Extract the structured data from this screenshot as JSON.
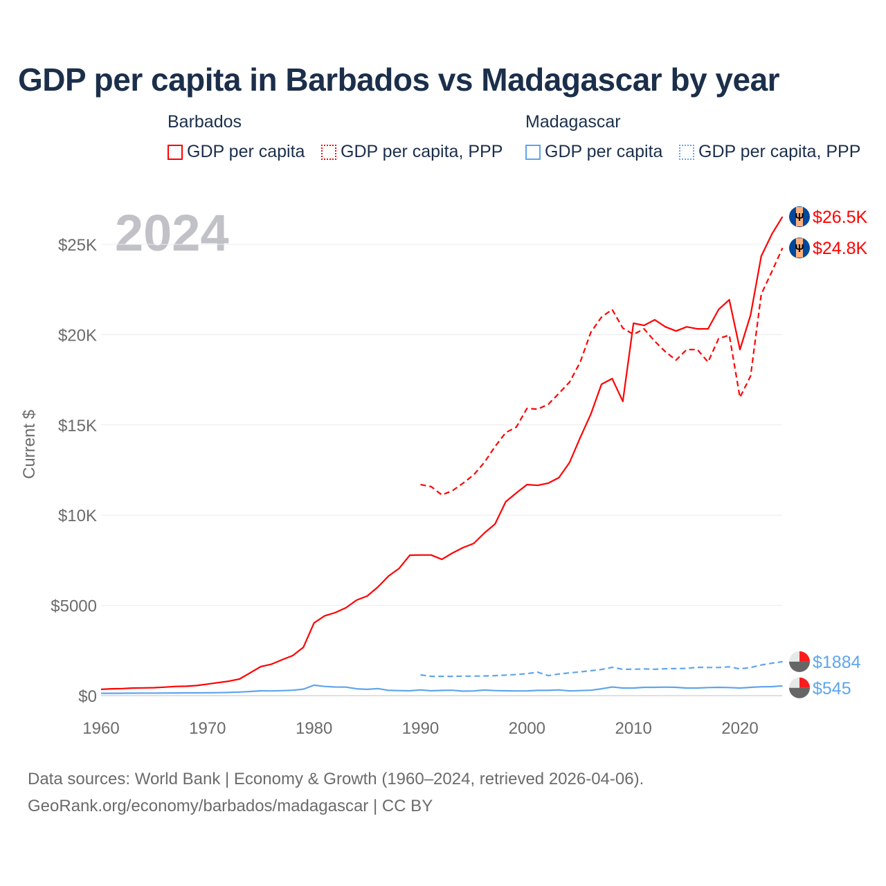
{
  "title": "GDP per capita in Barbados vs Madagascar by year",
  "legend": {
    "groups": [
      {
        "name": "Barbados",
        "items": [
          "GDP per capita",
          "GDP per capita, PPP"
        ],
        "color": "#ff0000"
      },
      {
        "name": "Madagascar",
        "items": [
          "GDP per capita",
          "GDP per capita, PPP"
        ],
        "color": "#5ea5ec"
      }
    ]
  },
  "footer": {
    "line1": "Data sources: World Bank | Economy & Growth (1960–2024, retrieved 2026-04-06).",
    "line2": "GeoRank.org/economy/barbados/madagascar | CC BY"
  },
  "chart_data": {
    "type": "line",
    "title": "GDP per capita in Barbados vs Madagascar by year",
    "year_watermark": "2024",
    "ylabel": "Current $",
    "xlim": [
      1960,
      2024
    ],
    "ylim": [
      0,
      27000
    ],
    "xticks": [
      {
        "v": 1960,
        "label": "1960"
      },
      {
        "v": 1970,
        "label": "1970"
      },
      {
        "v": 1980,
        "label": "1980"
      },
      {
        "v": 1990,
        "label": "1990"
      },
      {
        "v": 2000,
        "label": "2000"
      },
      {
        "v": 2010,
        "label": "2010"
      },
      {
        "v": 2020,
        "label": "2020"
      }
    ],
    "yticks": [
      {
        "v": 0,
        "label": "$0"
      },
      {
        "v": 5000,
        "label": "$5000"
      },
      {
        "v": 10000,
        "label": "$10K"
      },
      {
        "v": 15000,
        "label": "$15K"
      },
      {
        "v": 20000,
        "label": "$20K"
      },
      {
        "v": 25000,
        "label": "$25K"
      }
    ],
    "grid": true,
    "series": [
      {
        "name": "Barbados GDP per capita",
        "color": "#ff0000",
        "dash": false,
        "start": 1960,
        "end_label": "$26.5K",
        "flag": "barbados",
        "values": [
          350,
          380,
          390,
          420,
          430,
          440,
          470,
          510,
          520,
          560,
          640,
          720,
          800,
          920,
          1260,
          1610,
          1740,
          1990,
          2220,
          2680,
          4030,
          4420,
          4600,
          4870,
          5290,
          5520,
          6020,
          6630,
          7050,
          7780,
          7790,
          7790,
          7550,
          7900,
          8200,
          8430,
          9010,
          9510,
          10740,
          11230,
          11690,
          11650,
          11770,
          12080,
          12920,
          14300,
          15600,
          17250,
          17560,
          16300,
          20630,
          20510,
          20820,
          20430,
          20200,
          20430,
          20320,
          20320,
          21390,
          21930,
          19170,
          21090,
          24350,
          25570,
          26530
        ]
      },
      {
        "name": "Barbados GDP per capita, PPP",
        "color": "#ff0000",
        "dash": true,
        "start": 1990,
        "end_label": "$24.8K",
        "flag": "barbados",
        "values": [
          11690,
          11580,
          11120,
          11350,
          11770,
          12230,
          12920,
          13800,
          14570,
          14880,
          15910,
          15870,
          16140,
          16750,
          17370,
          18480,
          20130,
          20970,
          21390,
          20360,
          20010,
          20320,
          19630,
          19050,
          18590,
          19170,
          19170,
          18480,
          19780,
          19970,
          16520,
          17710,
          22240,
          23500,
          24800
        ]
      },
      {
        "name": "Madagascar GDP per capita",
        "color": "#5ea5ec",
        "dash": false,
        "start": 1960,
        "end_label": "$545",
        "flag": "madagascar",
        "values": [
          130,
          132,
          135,
          138,
          140,
          142,
          145,
          150,
          152,
          155,
          158,
          165,
          175,
          200,
          230,
          270,
          260,
          275,
          300,
          360,
          580,
          510,
          480,
          470,
          380,
          350,
          390,
          290,
          280,
          270,
          320,
          270,
          290,
          300,
          250,
          260,
          310,
          280,
          270,
          260,
          260,
          290,
          290,
          320,
          260,
          280,
          300,
          380,
          480,
          420,
          420,
          460,
          460,
          470,
          460,
          420,
          420,
          450,
          460,
          450,
          420,
          460,
          490,
          500,
          545
        ]
      },
      {
        "name": "Madagascar GDP per capita, PPP",
        "color": "#5ea5ec",
        "dash": true,
        "start": 1990,
        "end_label": "$1884",
        "flag": "madagascar",
        "values": [
          1150,
          1070,
          1070,
          1070,
          1080,
          1080,
          1090,
          1110,
          1140,
          1170,
          1220,
          1300,
          1110,
          1200,
          1260,
          1320,
          1380,
          1450,
          1570,
          1460,
          1460,
          1480,
          1460,
          1490,
          1500,
          1510,
          1570,
          1560,
          1560,
          1600,
          1480,
          1560,
          1700,
          1800,
          1884
        ]
      }
    ]
  }
}
